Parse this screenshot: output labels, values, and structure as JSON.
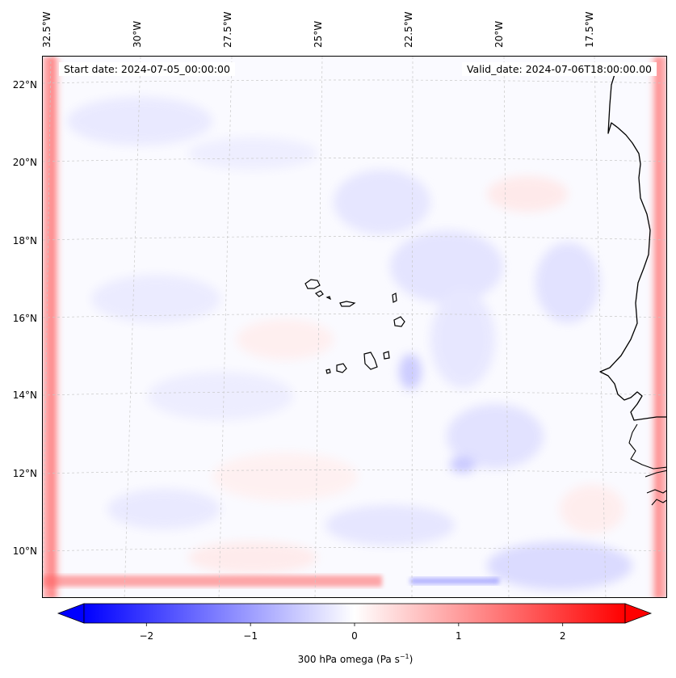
{
  "map": {
    "start_label": "Start date: 2024-07-05_00:00:00",
    "valid_label": "Valid_date: 2024-07-06T18:00:00.00",
    "lon_labels": [
      "32.5°W",
      "30°W",
      "27.5°W",
      "25°W",
      "22.5°W",
      "20°W",
      "17.5°W"
    ],
    "lat_labels": [
      "22°N",
      "20°N",
      "18°N",
      "16°N",
      "14°N",
      "12°N",
      "10°N"
    ],
    "variable": "300 hPa omega",
    "units": "Pa s",
    "units_exponent": "−1"
  },
  "colorbar": {
    "min": -2.6,
    "max": 2.6,
    "ticks": [
      "−2",
      "−1",
      "0",
      "1",
      "2"
    ],
    "tick_values": [
      -2,
      -1,
      0,
      1,
      2
    ],
    "title_prefix": "300 hPa omega (Pa s",
    "title_suffix": ")",
    "colors": {
      "low": "#0000ff",
      "mid": "#ffffff",
      "high": "#ff0000"
    }
  },
  "colors": {
    "coastline": "#000000",
    "gridline": "#c8c8c8",
    "background_tint": "#fafaff"
  }
}
